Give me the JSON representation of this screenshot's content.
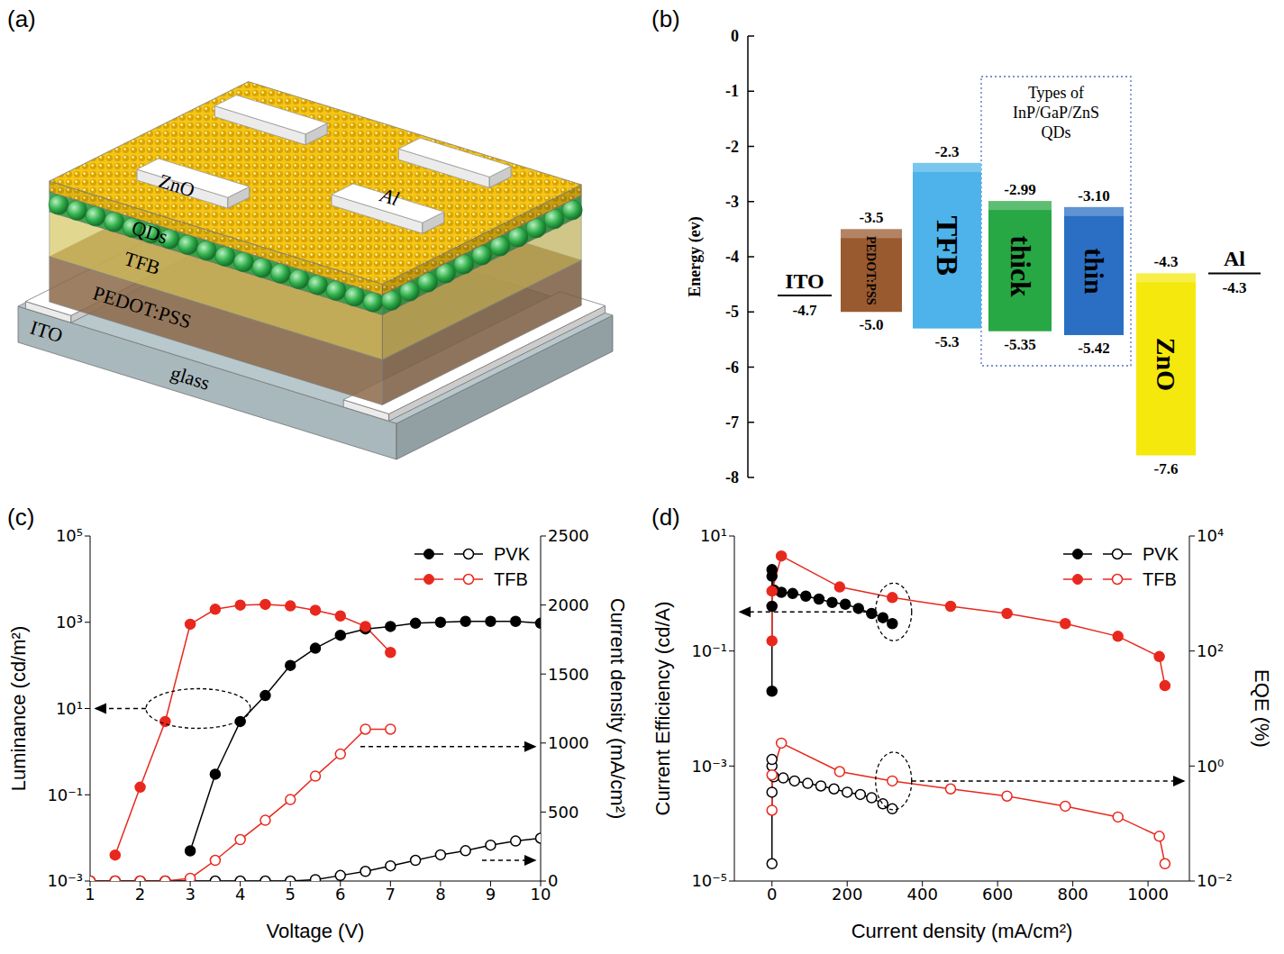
{
  "schematic": {
    "panel": "(a)",
    "layers": [
      {
        "label": "Al",
        "color": "#ffffff"
      },
      {
        "label": "ZnO",
        "color": "#f5c518"
      },
      {
        "label": "QDs",
        "color": "#2fae4a"
      },
      {
        "label": "TFB",
        "color": "#e6d35c"
      },
      {
        "label": "PEDOT:PSS",
        "color": "#9a7450"
      },
      {
        "label": "ITO",
        "color": "#ffffff"
      },
      {
        "label": "glass",
        "color": "#b8c8cc"
      }
    ]
  },
  "energy_diagram": {
    "panel": "(b)",
    "y_label": "Energy (ev)",
    "ylim": [
      -8,
      0
    ],
    "yticks": [
      0,
      -1,
      -2,
      -3,
      -4,
      -5,
      -6,
      -7,
      -8
    ],
    "levels": [
      {
        "name": "ITO",
        "level": {
          "value": -4.7,
          "label": "-4.7"
        },
        "color": "#000000"
      },
      {
        "name": "PEDOT:PSS",
        "top": {
          "value": -3.5,
          "label": "-3.5"
        },
        "bottom": {
          "value": -5,
          "label": "-5.0"
        },
        "color": "#9a5a30"
      },
      {
        "name": "TFB",
        "top": {
          "value": -2.3,
          "label": "-2.3"
        },
        "bottom": {
          "value": -5.3,
          "label": "-5.3"
        },
        "color": "#4db3ea"
      },
      {
        "name": "thick",
        "top": {
          "value": -2.99,
          "label": "-2.99"
        },
        "bottom": {
          "value": -5.35,
          "label": "-5.35"
        },
        "color": "#27a844"
      },
      {
        "name": "thin",
        "top": {
          "value": -3.1,
          "label": "-3.10"
        },
        "bottom": {
          "value": -5.42,
          "label": "-5.42"
        },
        "color": "#2a6fc4"
      },
      {
        "name": "ZnO",
        "top": {
          "value": -4.3,
          "label": "-4.3"
        },
        "bottom": {
          "value": -7.6,
          "label": "-7.6"
        },
        "color": "#f5e80c"
      },
      {
        "name": "Al",
        "level": {
          "value": -4.3,
          "label": "-4.3"
        },
        "color": "#000000"
      }
    ],
    "group": {
      "label": "Types of InP/GaP/ZnS QDs",
      "members": [
        "thick",
        "thin"
      ]
    }
  },
  "chart_data": [
    {
      "panel": "(c)",
      "type": "line",
      "x_label": "Voltage (V)",
      "y_label": "Luminance (cd/m²)",
      "y2_label": "Current density (mA/cm²)",
      "xlim": [
        1,
        10
      ],
      "xticks": [
        1,
        2,
        3,
        4,
        5,
        6,
        7,
        8,
        9,
        10
      ],
      "ylim": [
        0.001,
        100000
      ],
      "yticks": [
        {
          "value": 0.001,
          "label": "10⁻³"
        },
        {
          "value": 0.1,
          "label": "10⁻¹"
        },
        {
          "value": 10,
          "label": "10¹"
        },
        {
          "value": 1000,
          "label": "10³"
        },
        {
          "value": 100000,
          "label": "10⁵"
        }
      ],
      "y2lim": [
        0,
        2500
      ],
      "y2ticks": [
        0,
        500,
        1000,
        1500,
        2000,
        2500
      ],
      "log": "y",
      "legend": "upper right",
      "series": [
        {
          "name": "PVK",
          "color": "#000000",
          "marker": "filled_circle",
          "x": [
            3,
            3.5,
            4,
            4.5,
            5,
            5.5,
            6,
            6.5,
            7,
            7.5,
            8,
            8.5,
            9,
            9.5,
            10
          ],
          "values": [
            0.005,
            0.3,
            5,
            20,
            100,
            250,
            500,
            700,
            800,
            950,
            1000,
            1050,
            1050,
            1050,
            950
          ]
        },
        {
          "name": "TFB",
          "color": "#e8281e",
          "marker": "filled_circle",
          "x": [
            1.5,
            2,
            2.5,
            3,
            3.5,
            4,
            4.5,
            5,
            5.5,
            6,
            6.5,
            7
          ],
          "values": [
            0.004,
            0.15,
            5,
            900,
            2000,
            2500,
            2600,
            2400,
            1900,
            1400,
            800,
            200
          ]
        },
        {
          "name": "PVK",
          "color": "#000000",
          "marker": "open_circle",
          "axis": "y2",
          "x": [
            1,
            1.5,
            2,
            2.5,
            3,
            3.5,
            4,
            4.5,
            5,
            5.5,
            6,
            6.5,
            7,
            7.5,
            8,
            8.5,
            9,
            9.5,
            10
          ],
          "values": [
            0,
            0,
            0,
            0,
            0,
            0,
            0,
            0,
            0,
            10,
            40,
            70,
            110,
            150,
            190,
            220,
            260,
            290,
            310
          ]
        },
        {
          "name": "TFB",
          "color": "#e8281e",
          "marker": "open_circle",
          "axis": "y2",
          "x": [
            1,
            1.5,
            2,
            2.5,
            3,
            3.5,
            4,
            4.5,
            5,
            5.5,
            6,
            6.5,
            7
          ],
          "values": [
            0,
            0,
            0,
            0,
            20,
            150,
            300,
            440,
            590,
            760,
            920,
            1100,
            1100
          ]
        }
      ]
    },
    {
      "panel": "(d)",
      "type": "line",
      "x_label": "Current density (mA/cm²)",
      "y_label": "Current Efficiency (cd/A)",
      "y2_label": "EQE (%)",
      "xlim": [
        -100,
        1110
      ],
      "xticks": [
        0,
        200,
        400,
        600,
        800,
        1000
      ],
      "ylim": [
        1e-05,
        10
      ],
      "yticks": [
        {
          "value": 1e-05,
          "label": "10⁻⁵"
        },
        {
          "value": 0.001,
          "label": "10⁻³"
        },
        {
          "value": 0.1,
          "label": "10⁻¹"
        },
        {
          "value": 10,
          "label": "10¹"
        }
      ],
      "y2lim": [
        0.01,
        10000
      ],
      "y2ticks": [
        {
          "value": 0.01,
          "label": "10⁻²"
        },
        {
          "value": 1,
          "label": "10⁰"
        },
        {
          "value": 100,
          "label": "10²"
        },
        {
          "value": 10000,
          "label": "10⁴"
        }
      ],
      "log": [
        "y",
        "y2"
      ],
      "legend": "upper right",
      "series": [
        {
          "name": "PVK",
          "color": "#000000",
          "marker": "filled_circle",
          "x": [
            0,
            0,
            0,
            0,
            5,
            25,
            55,
            90,
            125,
            160,
            195,
            230,
            265,
            295,
            320
          ],
          "values": [
            0.02,
            0.6,
            2.0,
            2.6,
            1.15,
            1.05,
            1.0,
            0.9,
            0.8,
            0.7,
            0.65,
            0.55,
            0.45,
            0.38,
            0.3
          ]
        },
        {
          "name": "TFB",
          "color": "#e8281e",
          "marker": "filled_circle",
          "x": [
            0,
            0,
            25,
            180,
            320,
            475,
            625,
            780,
            920,
            1030,
            1045
          ],
          "values": [
            0.15,
            1.1,
            4.5,
            1.3,
            0.85,
            0.6,
            0.45,
            0.3,
            0.18,
            0.08,
            0.025
          ]
        },
        {
          "name": "PVK",
          "color": "#000000",
          "marker": "open_circle",
          "axis": "y2",
          "x": [
            0,
            0,
            0,
            0,
            5,
            30,
            60,
            95,
            130,
            165,
            200,
            235,
            265,
            295,
            320
          ],
          "values": [
            0.02,
            0.35,
            1.0,
            1.3,
            0.65,
            0.62,
            0.55,
            0.5,
            0.45,
            0.4,
            0.35,
            0.32,
            0.28,
            0.22,
            0.18
          ]
        },
        {
          "name": "TFB",
          "color": "#e8281e",
          "marker": "open_circle",
          "axis": "y2",
          "x": [
            0,
            0,
            25,
            180,
            320,
            475,
            625,
            780,
            920,
            1030,
            1045
          ],
          "values": [
            0.17,
            0.7,
            2.5,
            0.8,
            0.55,
            0.4,
            0.3,
            0.2,
            0.13,
            0.06,
            0.02
          ]
        }
      ]
    }
  ]
}
